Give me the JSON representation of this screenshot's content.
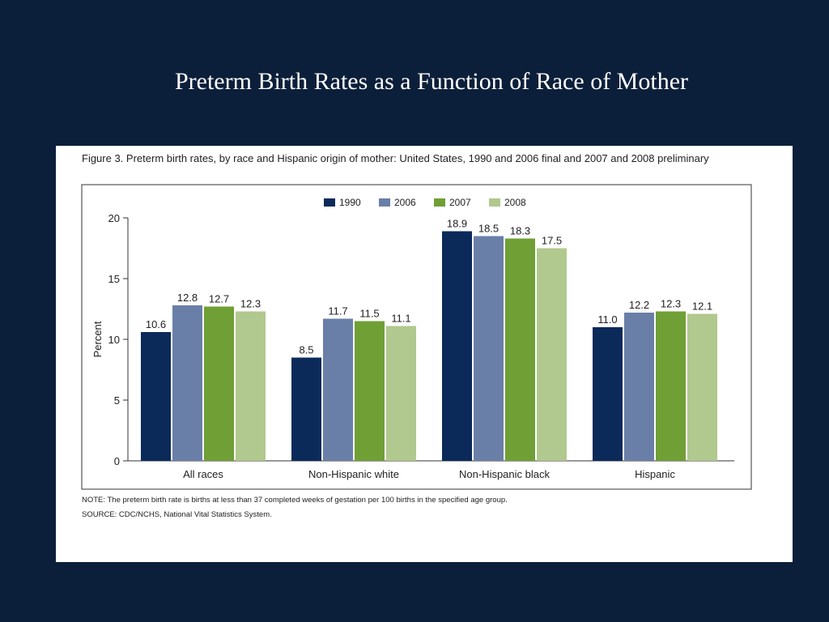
{
  "slide": {
    "title": "Preterm Birth Rates as a Function of Race of Mother"
  },
  "figure": {
    "caption": "Figure 3. Preterm birth rates, by race and Hispanic origin of mother: United States, 1990 and 2006 final and 2007 and 2008 preliminary",
    "note": "NOTE: The preterm birth rate is births at less than 37 completed weeks of gestation per 100 births in the specified age group.",
    "source": "SOURCE: CDC/NCHS, National Vital Statistics System."
  },
  "chart_data": {
    "type": "bar",
    "title": "",
    "xlabel": "",
    "ylabel": "Percent",
    "ylim": [
      0,
      20
    ],
    "yticks": [
      0,
      5,
      10,
      15,
      20
    ],
    "grid": false,
    "legend_position": "top-center",
    "categories": [
      "All races",
      "Non-Hispanic white",
      "Non-Hispanic black",
      "Hispanic"
    ],
    "series": [
      {
        "name": "1990",
        "color": "#0b2a5a",
        "values": [
          10.6,
          8.5,
          18.9,
          11.0
        ],
        "labels": [
          "10.6",
          "8.5",
          "18.9",
          "11.0"
        ]
      },
      {
        "name": "2006",
        "color": "#6a7fa7",
        "values": [
          12.8,
          11.7,
          18.5,
          12.2
        ],
        "labels": [
          "12.8",
          "11.7",
          "18.5",
          "12.2"
        ]
      },
      {
        "name": "2007",
        "color": "#6f9f35",
        "values": [
          12.7,
          11.5,
          18.3,
          12.3
        ],
        "labels": [
          "12.7",
          "11.5",
          "18.3",
          "12.3"
        ]
      },
      {
        "name": "2008",
        "color": "#b1c88e",
        "values": [
          12.3,
          11.1,
          17.5,
          12.1
        ],
        "labels": [
          "12.3",
          "11.1",
          "17.5",
          "12.1"
        ]
      }
    ]
  }
}
